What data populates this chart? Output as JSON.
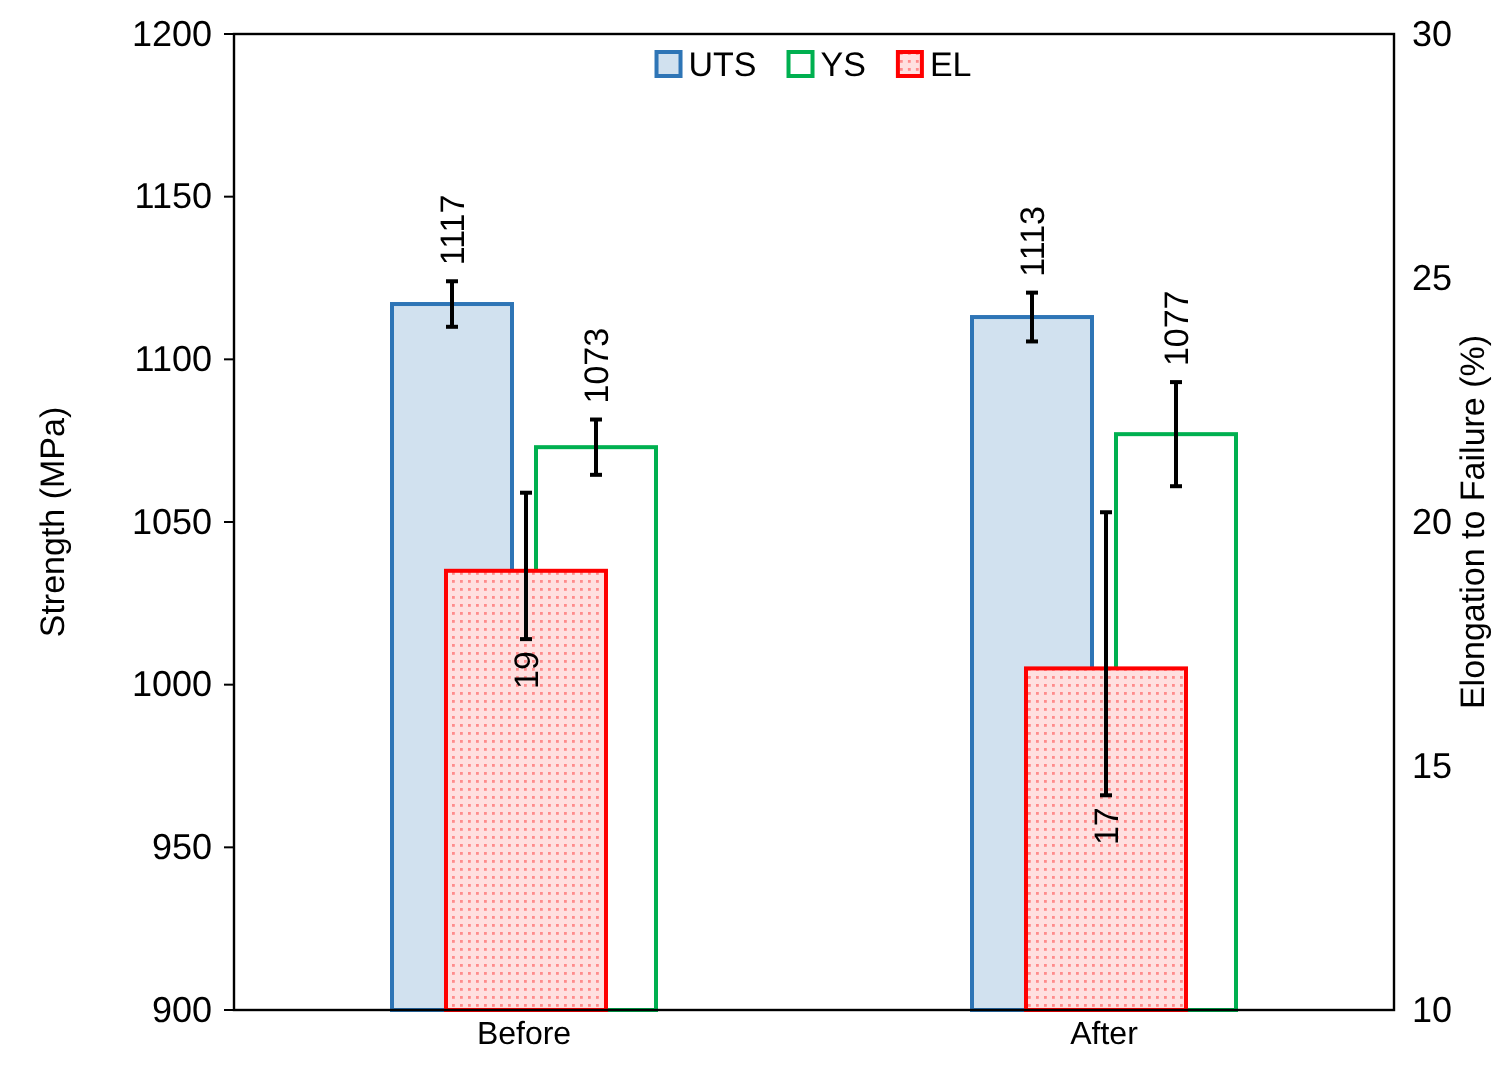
{
  "chart_data": {
    "type": "bar",
    "categories": [
      "Before",
      "After"
    ],
    "ylabel": "Strength (MPa)",
    "y2label": "Elongation to Failure (%)",
    "ylim": [
      900,
      1200
    ],
    "yticks": [
      900,
      950,
      1000,
      1050,
      1100,
      1150,
      1200
    ],
    "y2lim": [
      10,
      30
    ],
    "y2ticks": [
      10,
      15,
      20,
      25,
      30
    ],
    "series": [
      {
        "name": "UTS",
        "color": "#2e75b6",
        "values": [
          1117,
          1113
        ],
        "errors": [
          7,
          7.5
        ]
      },
      {
        "name": "YS",
        "color": "#00b050",
        "values": [
          1073,
          1077
        ],
        "errors": [
          8.5,
          16
        ]
      },
      {
        "name": "EL",
        "color": "#ff0000",
        "axis": "y2",
        "values": [
          19,
          17
        ],
        "errors": [
          [
            17.6,
            20.6
          ],
          [
            14.4,
            20.2
          ]
        ]
      }
    ],
    "data_labels": true,
    "legend": "top",
    "grid": false
  }
}
